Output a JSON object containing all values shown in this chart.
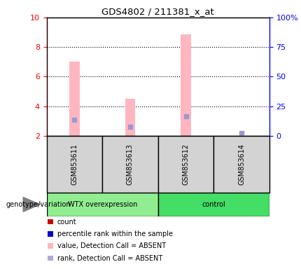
{
  "title": "GDS4802 / 211381_x_at",
  "samples": [
    "GSM853611",
    "GSM853613",
    "GSM853612",
    "GSM853614"
  ],
  "ylim_left": [
    2,
    10
  ],
  "ylim_right": [
    0,
    100
  ],
  "yticks_left": [
    2,
    4,
    6,
    8,
    10
  ],
  "yticks_right": [
    0,
    25,
    50,
    75,
    100
  ],
  "ytick_labels_right": [
    "0",
    "25",
    "50",
    "75",
    "100%"
  ],
  "pink_bar_tops": [
    7.0,
    4.5,
    8.85,
    2.0
  ],
  "pink_bar_base": 2.0,
  "blue_marker_values": [
    3.1,
    2.6,
    3.3,
    2.18
  ],
  "pink_color": "#FFB6C1",
  "blue_color": "#9999CC",
  "red_color": "#CC0000",
  "dark_blue_color": "#0000CC",
  "bar_width": 0.18,
  "sample_box_color": "#D3D3D3",
  "group_box_color_1": "#90EE90",
  "group_box_color_2": "#44DD66",
  "legend_colors": [
    "#CC0000",
    "#0000CC",
    "#FFB6C1",
    "#AAAADD"
  ],
  "legend_labels": [
    "count",
    "percentile rank within the sample",
    "value, Detection Call = ABSENT",
    "rank, Detection Call = ABSENT"
  ]
}
